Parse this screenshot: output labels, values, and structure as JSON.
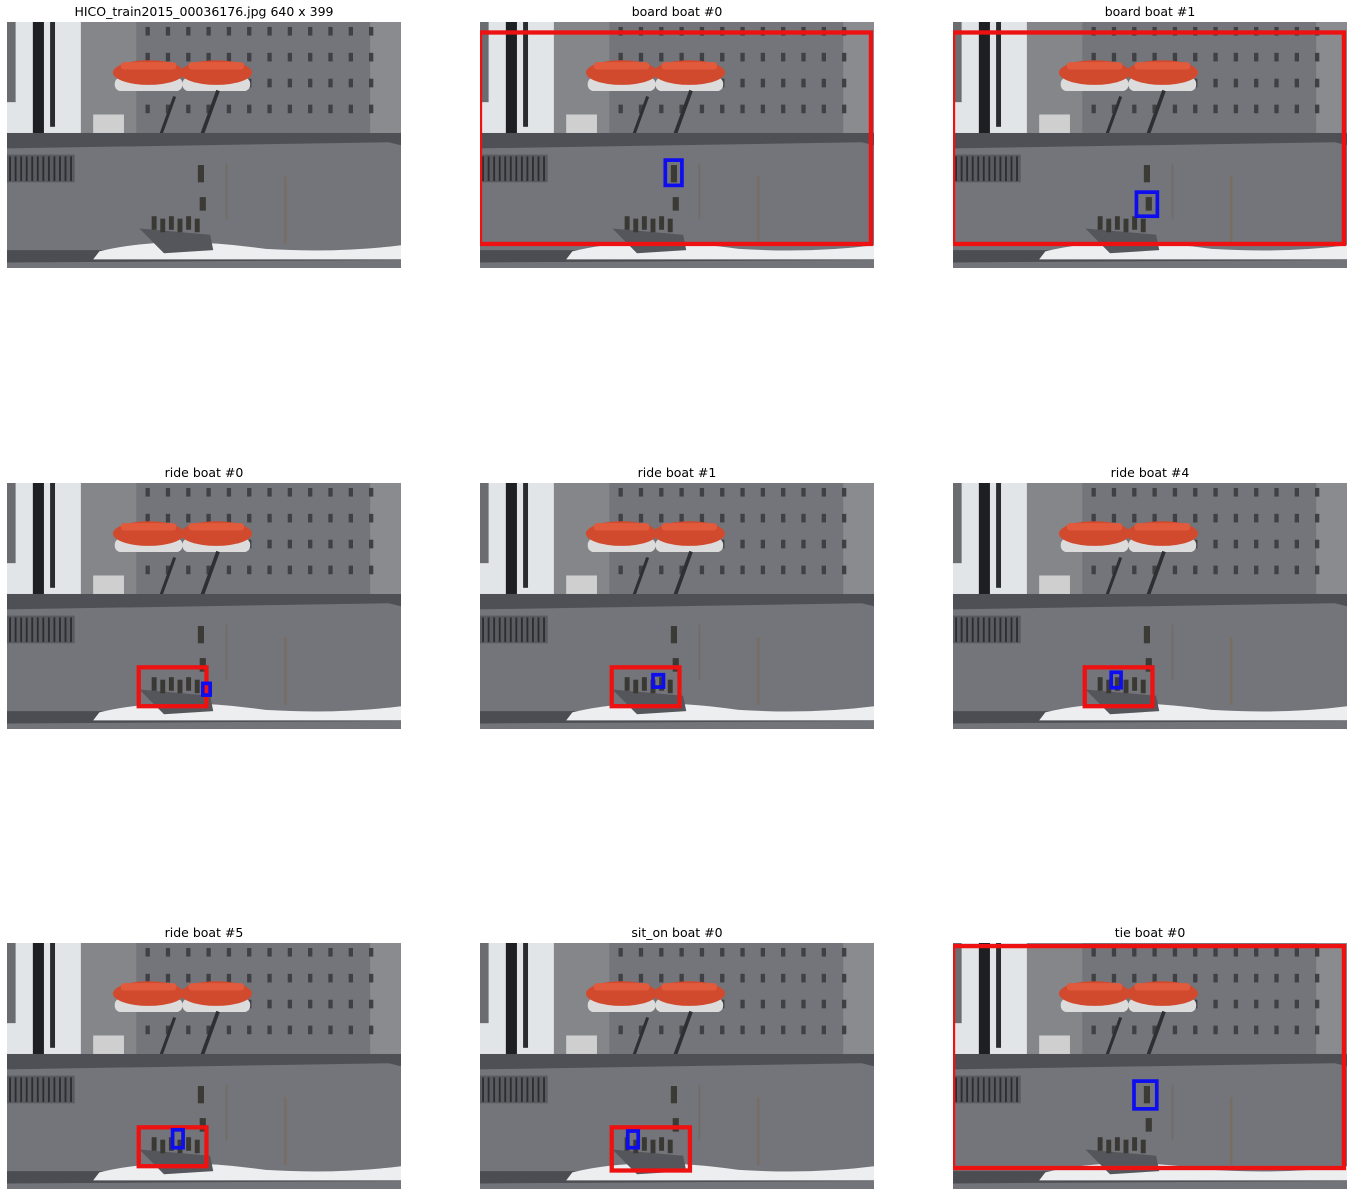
{
  "image": {
    "width": 640,
    "height": 399,
    "palette": {
      "sky": "#e2e5e7",
      "hull": "#74757a",
      "hull_dark": "#5a5b60",
      "lifeboat": "#d24a2e",
      "lifeboat_white": "#dcdcdc",
      "water": "#4b4d52",
      "foam": "#eceef0",
      "object_box": "#ee1111",
      "human_box": "#0d0df0"
    }
  },
  "panels": [
    {
      "title": "HICO_train2015_00036176.jpg 640 x 399",
      "object_box": null,
      "human_box": null
    },
    {
      "title": "board boat #0",
      "object_box": [
        0,
        17,
        635,
        360
      ],
      "human_box": [
        301,
        224,
        328,
        265
      ]
    },
    {
      "title": "board boat #1",
      "object_box": [
        0,
        17,
        635,
        360
      ],
      "human_box": [
        298,
        276,
        332,
        315
      ]
    },
    {
      "title": "ride boat #0",
      "object_box": [
        214,
        299,
        324,
        362
      ],
      "human_box": [
        318,
        325,
        330,
        344
      ]
    },
    {
      "title": "ride boat #1",
      "object_box": [
        214,
        299,
        324,
        362
      ],
      "human_box": [
        281,
        311,
        298,
        331
      ]
    },
    {
      "title": "ride boat #4",
      "object_box": [
        214,
        299,
        324,
        362
      ],
      "human_box": [
        257,
        307,
        273,
        332
      ]
    },
    {
      "title": "ride boat #5",
      "object_box": [
        214,
        299,
        324,
        362
      ],
      "human_box": [
        269,
        303,
        286,
        332
      ]
    },
    {
      "title": "sit_on boat #0",
      "object_box": [
        214,
        299,
        341,
        369
      ],
      "human_box": [
        240,
        305,
        257,
        332
      ]
    },
    {
      "title": "tie boat #0",
      "object_box": [
        0,
        5,
        635,
        365
      ],
      "human_box": [
        294,
        224,
        331,
        269
      ]
    }
  ]
}
